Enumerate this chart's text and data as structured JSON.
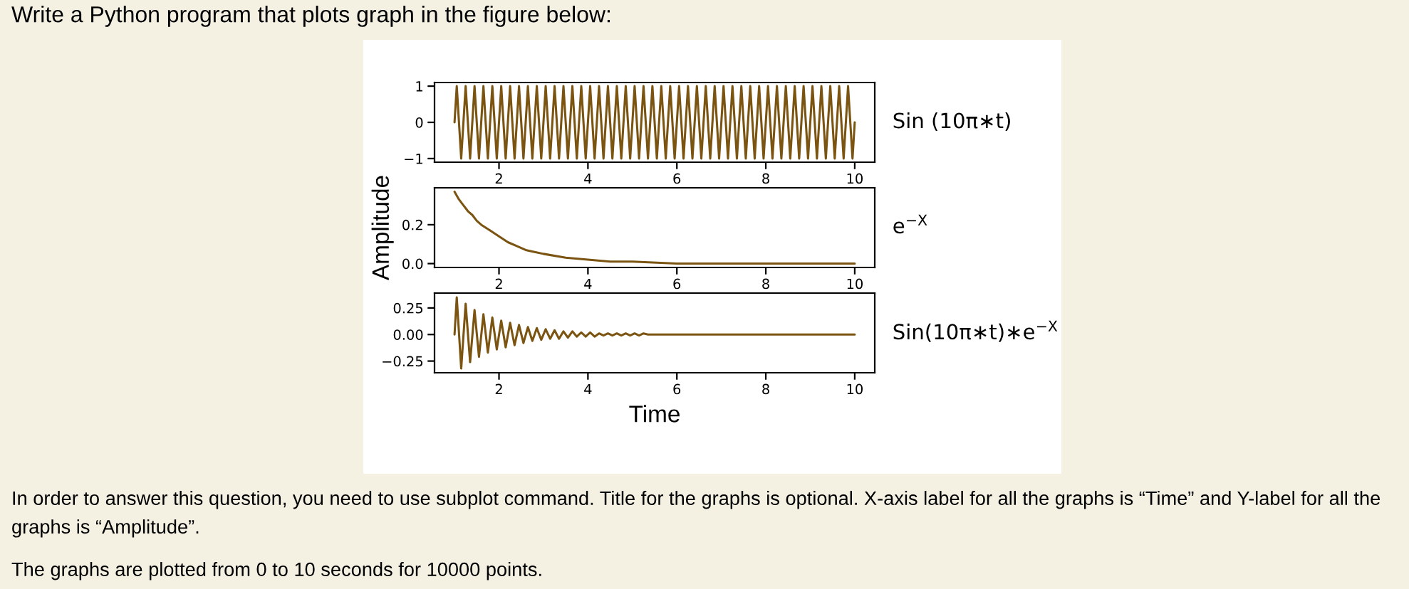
{
  "chart_data": [
    {
      "type": "line",
      "title": "Write a Python program that plots graph in the figure below:",
      "annotations": [
        "In order to answer this question, you need to use subplot command. Title for the graphs is optional. X-axis label for all the graphs is “Time” and Y-label for all the graphs is “Amplitude”.",
        "The graphs are plotted from 0 to 10 seconds for 10000 points."
      ],
      "x": [
        1.0,
        1.05,
        1.15,
        1.25,
        1.35,
        1.45,
        1.55,
        1.65,
        1.75,
        1.85,
        1.95,
        2.05,
        2.15,
        2.25,
        2.35,
        2.45,
        2.55,
        2.65,
        2.75,
        2.85,
        2.95,
        3.05,
        3.15,
        3.25,
        3.35,
        3.45,
        3.55,
        3.65,
        3.75,
        3.85,
        3.95,
        4.05,
        4.15,
        4.25,
        4.35,
        4.45,
        4.55,
        4.65,
        4.75,
        4.85,
        4.95,
        5.05,
        5.15,
        5.25,
        5.35,
        5.45,
        5.55,
        5.65,
        5.75,
        5.85,
        5.95,
        6.05,
        6.15,
        6.25,
        6.35,
        6.45,
        6.55,
        6.65,
        6.75,
        6.85,
        6.95,
        7.05,
        7.15,
        7.25,
        7.35,
        7.45,
        7.55,
        7.65,
        7.75,
        7.85,
        7.95,
        8.05,
        8.15,
        8.25,
        8.35,
        8.45,
        8.55,
        8.65,
        8.75,
        8.85,
        8.95,
        9.05,
        9.15,
        9.25,
        9.35,
        9.45,
        9.55,
        9.65,
        9.75,
        9.85,
        9.95,
        10.0
      ],
      "series": [
        {
          "name": "Sin (10π∗t)",
          "color": "#7a5410",
          "values": [
            0,
            1,
            -1,
            1,
            -1,
            1,
            -1,
            1,
            -1,
            1,
            -1,
            1,
            -1,
            1,
            -1,
            1,
            -1,
            1,
            -1,
            1,
            -1,
            1,
            -1,
            1,
            -1,
            1,
            -1,
            1,
            -1,
            1,
            -1,
            1,
            -1,
            1,
            -1,
            1,
            -1,
            1,
            -1,
            1,
            -1,
            1,
            -1,
            1,
            -1,
            1,
            -1,
            1,
            -1,
            1,
            -1,
            1,
            -1,
            1,
            -1,
            1,
            -1,
            1,
            -1,
            1,
            -1,
            1,
            -1,
            1,
            -1,
            1,
            -1,
            1,
            -1,
            1,
            -1,
            1,
            -1,
            1,
            -1,
            1,
            -1,
            1,
            -1,
            1,
            -1,
            1,
            -1,
            1,
            -1,
            1,
            -1,
            1,
            -1,
            1,
            -1,
            0
          ]
        }
      ],
      "xlim": [
        0.55,
        10.45
      ],
      "xticks": [
        2,
        4,
        6,
        8,
        10
      ],
      "ylim": [
        -1.1,
        1.1
      ],
      "yticks": [
        1,
        0,
        {
          "value": -1,
          "label": "−1"
        }
      ]
    },
    {
      "type": "line",
      "ylabel": "Amplitude",
      "x": [
        1.0,
        1.1,
        1.2,
        1.3,
        1.4,
        1.5,
        1.6,
        1.8,
        2.0,
        2.2,
        2.4,
        2.6,
        2.8,
        3.0,
        3.5,
        4.0,
        4.5,
        5.0,
        6.0,
        8.0,
        10.0
      ],
      "series": [
        {
          "name": "e$^{−X}$",
          "color": "#7a5410",
          "values": [
            0.37,
            0.33,
            0.3,
            0.27,
            0.25,
            0.22,
            0.2,
            0.17,
            0.14,
            0.11,
            0.09,
            0.07,
            0.06,
            0.05,
            0.03,
            0.02,
            0.01,
            0.01,
            0.0,
            0.0,
            0.0
          ]
        }
      ],
      "xlim": [
        0.55,
        10.45
      ],
      "xticks": [
        2,
        4,
        6,
        8,
        10
      ],
      "ylim": [
        -0.02,
        0.39
      ],
      "yticks": [
        {
          "value": 0.2,
          "label": "0.2"
        },
        {
          "value": 0,
          "label": "0.0"
        }
      ]
    },
    {
      "type": "line",
      "xlabel": "Time",
      "x": [
        1.0,
        1.05,
        1.15,
        1.25,
        1.35,
        1.45,
        1.55,
        1.65,
        1.75,
        1.85,
        1.95,
        2.05,
        2.15,
        2.25,
        2.35,
        2.45,
        2.55,
        2.65,
        2.75,
        2.85,
        2.95,
        3.05,
        3.15,
        3.25,
        3.35,
        3.45,
        3.55,
        3.65,
        3.75,
        3.85,
        3.95,
        4.05,
        4.15,
        4.25,
        4.35,
        4.45,
        4.55,
        4.65,
        4.75,
        4.85,
        4.95,
        5.05,
        5.15,
        5.25,
        5.35,
        10.0
      ],
      "series": [
        {
          "name": "Sin(10π∗t)∗e$^{−X}$",
          "color": "#7a5410",
          "values": [
            0,
            0.35,
            -0.32,
            0.29,
            -0.26,
            0.23,
            -0.21,
            0.19,
            -0.17,
            0.16,
            -0.14,
            0.13,
            -0.12,
            0.11,
            -0.1,
            0.09,
            -0.08,
            0.07,
            -0.06,
            0.06,
            -0.05,
            0.05,
            -0.04,
            0.04,
            -0.04,
            0.03,
            -0.03,
            0.03,
            -0.02,
            0.02,
            -0.02,
            0.02,
            -0.02,
            0.01,
            -0.01,
            0.01,
            -0.01,
            0.01,
            -0.01,
            0.01,
            -0.01,
            0.01,
            -0.01,
            0.01,
            0,
            0
          ]
        }
      ],
      "xlim": [
        0.55,
        10.45
      ],
      "xticks": [
        2,
        4,
        6,
        8,
        10
      ],
      "ylim": [
        -0.36,
        0.39
      ],
      "yticks": [
        0.25,
        {
          "value": 0,
          "label": "0.00"
        },
        {
          "value": -0.25,
          "label": "−0.25"
        }
      ]
    }
  ]
}
